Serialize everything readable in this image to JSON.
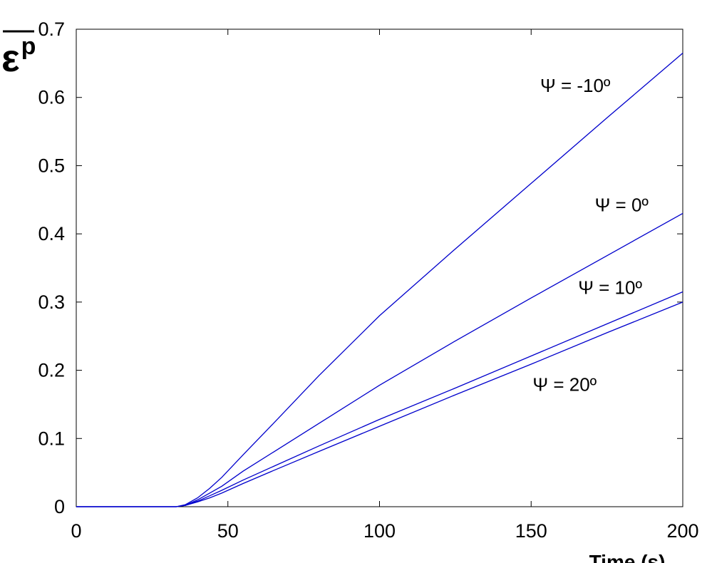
{
  "chart_data": {
    "type": "line",
    "title": "",
    "xlabel": "Time (s)",
    "ylabel_symbol": "ε",
    "ylabel_superscript": "p",
    "xlim": [
      0,
      200
    ],
    "ylim": [
      0,
      0.7
    ],
    "xticks": [
      0,
      50,
      100,
      150,
      200
    ],
    "yticks": [
      0,
      0.1,
      0.2,
      0.3,
      0.4,
      0.5,
      0.6,
      0.7
    ],
    "xtick_labels": [
      "0",
      "50",
      "100",
      "150",
      "200"
    ],
    "ytick_labels": [
      "0",
      "0.1",
      "0.2",
      "0.3",
      "0.4",
      "0.5",
      "0.6",
      "0.7"
    ],
    "grid": false,
    "line_color": "#0000cc",
    "series": [
      {
        "name": "Ψ = -10º",
        "x": [
          0,
          33,
          36,
          40,
          44,
          48,
          55,
          65,
          80,
          100,
          125,
          150,
          175,
          200
        ],
        "y": [
          0,
          0,
          0.003,
          0.013,
          0.027,
          0.043,
          0.076,
          0.122,
          0.192,
          0.28,
          0.378,
          0.474,
          0.57,
          0.665
        ]
      },
      {
        "name": "Ψ = 0º",
        "x": [
          0,
          33,
          36,
          40,
          44,
          48,
          55,
          65,
          80,
          100,
          125,
          150,
          175,
          200
        ],
        "y": [
          0,
          0,
          0.002,
          0.01,
          0.02,
          0.03,
          0.052,
          0.08,
          0.122,
          0.178,
          0.243,
          0.306,
          0.368,
          0.43
        ]
      },
      {
        "name": "Ψ = 10º",
        "x": [
          0,
          33,
          36,
          40,
          44,
          48,
          55,
          65,
          80,
          100,
          125,
          150,
          175,
          200
        ],
        "y": [
          0,
          0,
          0.002,
          0.008,
          0.016,
          0.024,
          0.039,
          0.059,
          0.089,
          0.128,
          0.174,
          0.221,
          0.268,
          0.315
        ]
      },
      {
        "name": "Ψ = 20º",
        "x": [
          0,
          33,
          36,
          40,
          44,
          48,
          55,
          65,
          80,
          100,
          125,
          150,
          175,
          200
        ],
        "y": [
          0,
          0,
          0.002,
          0.007,
          0.013,
          0.02,
          0.034,
          0.053,
          0.081,
          0.118,
          0.164,
          0.209,
          0.255,
          0.3
        ]
      }
    ],
    "annotations": [
      {
        "text": "Ψ = -10º",
        "x": 153,
        "y": 0.608
      },
      {
        "text": "Ψ = 0º",
        "x": 171,
        "y": 0.433
      },
      {
        "text": "Ψ = 10º",
        "x": 165.5,
        "y": 0.312
      },
      {
        "text": "Ψ = 20º",
        "x": 150.5,
        "y": 0.17
      }
    ]
  }
}
